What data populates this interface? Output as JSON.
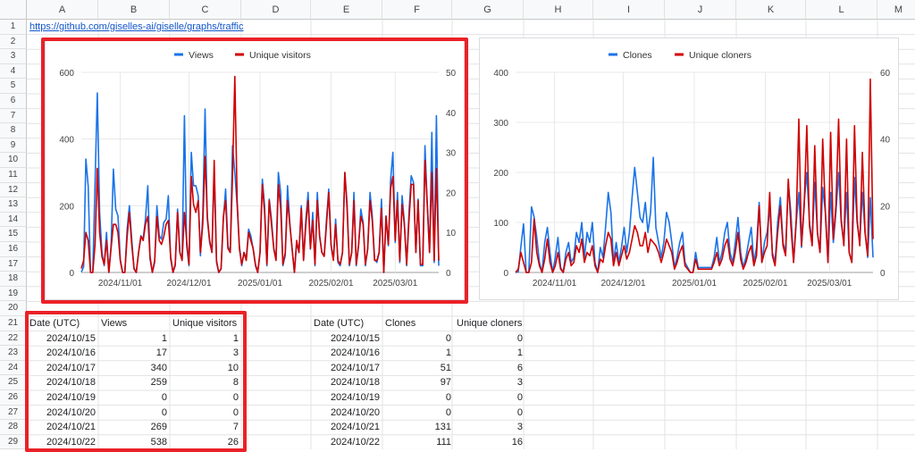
{
  "spreadsheet": {
    "columns": [
      "A",
      "B",
      "C",
      "D",
      "E",
      "F",
      "G",
      "H",
      "I",
      "J",
      "K",
      "L",
      "M"
    ],
    "rows": [
      "1",
      "2",
      "3",
      "4",
      "5",
      "6",
      "7",
      "8",
      "9",
      "10",
      "11",
      "12",
      "13",
      "14",
      "15",
      "16",
      "17",
      "18",
      "19",
      "20",
      "21",
      "22",
      "23",
      "24",
      "25",
      "26",
      "27",
      "28",
      "29"
    ],
    "link": "https://github.com/giselles-ai/giselle/graphs/traffic"
  },
  "views_table": {
    "headers": [
      "Date (UTC)",
      "Views",
      "Unique visitors"
    ],
    "rows": [
      [
        "2024/10/15",
        "1",
        "1"
      ],
      [
        "2024/10/16",
        "17",
        "3"
      ],
      [
        "2024/10/17",
        "340",
        "10"
      ],
      [
        "2024/10/18",
        "259",
        "8"
      ],
      [
        "2024/10/19",
        "0",
        "0"
      ],
      [
        "2024/10/20",
        "0",
        "0"
      ],
      [
        "2024/10/21",
        "269",
        "7"
      ],
      [
        "2024/10/22",
        "538",
        "26"
      ]
    ]
  },
  "clones_table": {
    "headers": [
      "Date (UTC)",
      "Clones",
      "Unique cloners"
    ],
    "rows": [
      [
        "2024/10/15",
        "0",
        "0"
      ],
      [
        "2024/10/16",
        "1",
        "1"
      ],
      [
        "2024/10/17",
        "51",
        "6"
      ],
      [
        "2024/10/18",
        "97",
        "3"
      ],
      [
        "2024/10/19",
        "0",
        "0"
      ],
      [
        "2024/10/20",
        "0",
        "0"
      ],
      [
        "2024/10/21",
        "131",
        "3"
      ],
      [
        "2024/10/22",
        "111",
        "16"
      ]
    ]
  },
  "chart_data": [
    {
      "type": "line",
      "legend_position": "top",
      "legend": [
        "Views",
        "Unique visitors"
      ],
      "colors": [
        "#1a73e8",
        "#d00000"
      ],
      "grid": true,
      "x_ticks": [
        "2024/11/01",
        "2024/12/01",
        "2025/01/01",
        "2025/02/01",
        "2025/03/01"
      ],
      "x_tick_days": [
        17,
        47,
        78,
        109,
        137
      ],
      "x_range_days": [
        0,
        156
      ],
      "left_ticks": [
        "0",
        "200",
        "400",
        "600"
      ],
      "left_ylim": [
        0,
        600
      ],
      "right_ticks": [
        "0",
        "10",
        "20",
        "30",
        "40",
        "50"
      ],
      "right_ylim": [
        0,
        50
      ],
      "series": [
        {
          "name": "Views",
          "axis": "left",
          "values": [
            1,
            17,
            340,
            259,
            0,
            0,
            269,
            538,
            180,
            60,
            20,
            120,
            0,
            80,
            310,
            190,
            170,
            40,
            0,
            0,
            130,
            200,
            100,
            10,
            0,
            60,
            110,
            100,
            160,
            260,
            40,
            0,
            30,
            200,
            110,
            100,
            150,
            160,
            230,
            40,
            0,
            20,
            190,
            60,
            40,
            470,
            80,
            20,
            360,
            260,
            260,
            230,
            50,
            170,
            490,
            160,
            90,
            60,
            300,
            30,
            0,
            10,
            160,
            250,
            80,
            60,
            380,
            300,
            200,
            80,
            20,
            60,
            40,
            130,
            110,
            70,
            20,
            0,
            60,
            280,
            200,
            20,
            220,
            160,
            70,
            40,
            300,
            240,
            20,
            50,
            260,
            150,
            70,
            0,
            90,
            60,
            200,
            40,
            160,
            240,
            70,
            180,
            20,
            240,
            110,
            60,
            50,
            160,
            250,
            80,
            40,
            160,
            30,
            20,
            60,
            300,
            210,
            20,
            60,
            240,
            20,
            80,
            190,
            150,
            20,
            70,
            240,
            170,
            40,
            30,
            60,
            220,
            0,
            170,
            80,
            280,
            360,
            90,
            240,
            30,
            230,
            150,
            20,
            180,
            290,
            270,
            60,
            220,
            20,
            20,
            380,
            200,
            60,
            420,
            30,
            470,
            20
          ]
        },
        {
          "name": "Unique visitors",
          "axis": "right",
          "values": [
            1,
            3,
            10,
            8,
            0,
            0,
            7,
            26,
            10,
            4,
            2,
            8,
            0,
            6,
            12,
            12,
            10,
            3,
            0,
            0,
            9,
            15,
            7,
            1,
            0,
            5,
            9,
            8,
            12,
            14,
            4,
            0,
            3,
            14,
            8,
            7,
            9,
            12,
            13,
            4,
            0,
            2,
            15,
            5,
            3,
            15,
            8,
            2,
            24,
            17,
            15,
            18,
            5,
            12,
            29,
            14,
            8,
            5,
            28,
            3,
            0,
            1,
            14,
            18,
            6,
            5,
            24,
            49,
            18,
            6,
            2,
            5,
            3,
            10,
            8,
            6,
            2,
            0,
            5,
            22,
            15,
            2,
            18,
            12,
            6,
            3,
            22,
            16,
            2,
            5,
            18,
            12,
            6,
            0,
            8,
            5,
            16,
            3,
            12,
            18,
            6,
            13,
            2,
            18,
            9,
            5,
            4,
            12,
            20,
            7,
            3,
            12,
            3,
            2,
            5,
            25,
            16,
            2,
            5,
            18,
            2,
            7,
            14,
            12,
            2,
            6,
            18,
            13,
            3,
            3,
            5,
            16,
            0,
            14,
            7,
            21,
            24,
            8,
            18,
            3,
            17,
            12,
            2,
            13,
            22,
            22,
            5,
            18,
            2,
            2,
            28,
            17,
            5,
            25,
            3,
            26,
            3
          ]
        }
      ]
    },
    {
      "type": "line",
      "legend_position": "top",
      "legend": [
        "Clones",
        "Unique cloners"
      ],
      "colors": [
        "#1a73e8",
        "#d00000"
      ],
      "grid": true,
      "x_ticks": [
        "2024/11/01",
        "2024/12/01",
        "2025/01/01",
        "2025/02/01",
        "2025/03/01"
      ],
      "x_tick_days": [
        17,
        47,
        78,
        109,
        137
      ],
      "x_range_days": [
        0,
        156
      ],
      "left_ticks": [
        "0",
        "100",
        "200",
        "300",
        "400"
      ],
      "left_ylim": [
        0,
        400
      ],
      "right_ticks": [
        "0",
        "20",
        "40",
        "60"
      ],
      "right_ylim": [
        0,
        60
      ],
      "series": [
        {
          "name": "Clones",
          "axis": "left",
          "values": [
            0,
            1,
            51,
            97,
            0,
            0,
            131,
            111,
            70,
            20,
            0,
            60,
            90,
            40,
            0,
            30,
            70,
            10,
            0,
            40,
            60,
            20,
            30,
            80,
            60,
            100,
            30,
            80,
            60,
            100,
            20,
            0,
            50,
            30,
            90,
            160,
            120,
            20,
            60,
            20,
            50,
            90,
            40,
            80,
            150,
            210,
            160,
            110,
            100,
            140,
            80,
            120,
            230,
            90,
            60,
            30,
            60,
            120,
            100,
            60,
            10,
            30,
            60,
            80,
            20,
            10,
            0,
            0,
            40,
            10,
            10,
            10,
            10,
            10,
            10,
            30,
            70,
            20,
            40,
            80,
            100,
            40,
            20,
            60,
            110,
            40,
            10,
            30,
            60,
            90,
            20,
            50,
            140,
            20,
            60,
            80,
            130,
            40,
            20,
            100,
            150,
            60,
            40,
            180,
            120,
            20,
            100,
            160,
            50,
            140,
            200,
            100,
            60,
            180,
            80,
            40,
            170,
            120,
            20,
            160,
            60,
            120,
            200,
            100,
            60,
            160,
            40,
            20,
            190,
            100,
            60,
            160,
            80,
            30,
            150,
            30
          ]
        },
        {
          "name": "Unique cloners",
          "axis": "right",
          "values": [
            0,
            1,
            6,
            3,
            0,
            0,
            3,
            16,
            6,
            2,
            0,
            4,
            10,
            3,
            0,
            2,
            6,
            1,
            0,
            4,
            6,
            2,
            3,
            8,
            6,
            10,
            3,
            6,
            5,
            8,
            2,
            0,
            4,
            3,
            8,
            12,
            10,
            2,
            6,
            2,
            5,
            8,
            4,
            6,
            10,
            14,
            12,
            8,
            8,
            12,
            6,
            10,
            9,
            8,
            6,
            3,
            6,
            10,
            8,
            6,
            1,
            3,
            6,
            8,
            2,
            1,
            0,
            0,
            4,
            1,
            1,
            1,
            1,
            1,
            1,
            3,
            6,
            2,
            4,
            8,
            10,
            4,
            2,
            6,
            12,
            4,
            1,
            3,
            6,
            8,
            2,
            5,
            20,
            3,
            6,
            8,
            24,
            5,
            2,
            12,
            20,
            8,
            5,
            28,
            14,
            3,
            16,
            46,
            8,
            20,
            44,
            14,
            8,
            38,
            12,
            6,
            40,
            18,
            3,
            42,
            10,
            20,
            46,
            16,
            8,
            40,
            6,
            3,
            44,
            16,
            8,
            36,
            12,
            5,
            58,
            10
          ]
        }
      ]
    }
  ]
}
